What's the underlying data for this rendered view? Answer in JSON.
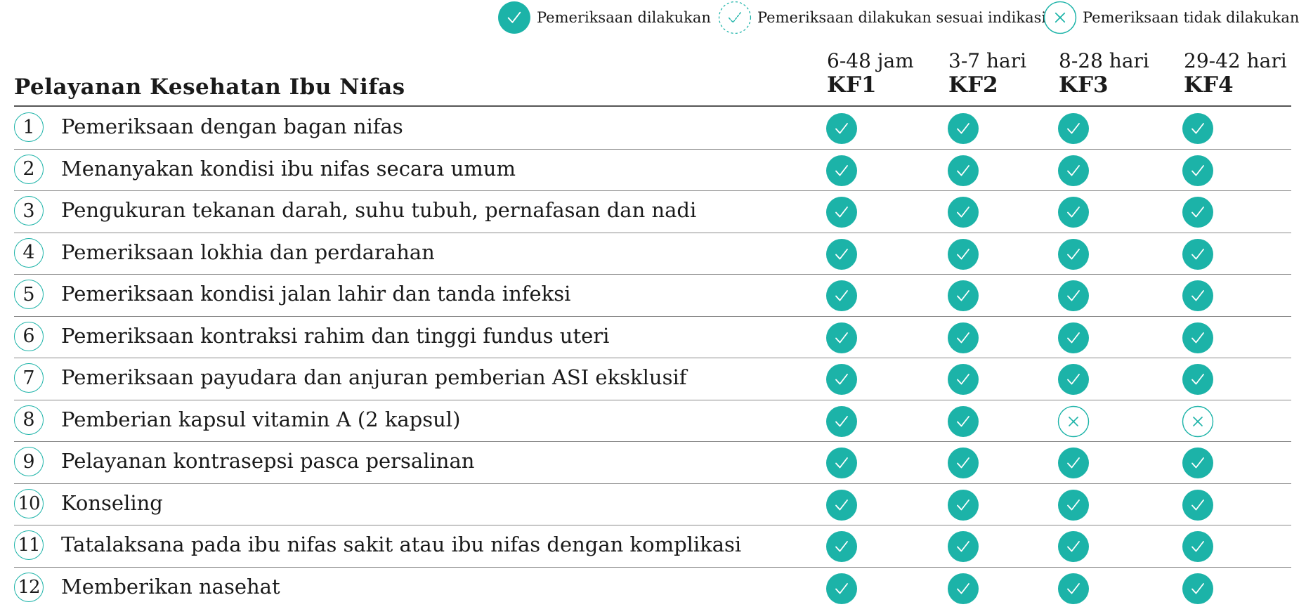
{
  "legend": [
    {
      "icon": "filled-check-icon",
      "label": "Pemeriksaan dilakukan"
    },
    {
      "icon": "dashed-check-icon",
      "label": "Pemeriksaan dilakukan sesuai indikasi"
    },
    {
      "icon": "x-icon",
      "label": "Pemeriksaan tidak dilakukan"
    }
  ],
  "table": {
    "title": "Pelayanan Kesehatan Ibu Nifas",
    "columns": [
      {
        "range": "6-48 jam",
        "code": "KF1"
      },
      {
        "range": "3-7 hari",
        "code": "KF2"
      },
      {
        "range": "8-28 hari",
        "code": "KF3"
      },
      {
        "range": "29-42 hari",
        "code": "KF4"
      }
    ],
    "rows": [
      {
        "num": "1",
        "label": "Pemeriksaan dengan bagan nifas",
        "status": [
          "done",
          "done",
          "done",
          "done"
        ]
      },
      {
        "num": "2",
        "label": "Menanyakan kondisi ibu nifas secara umum",
        "status": [
          "done",
          "done",
          "done",
          "done"
        ]
      },
      {
        "num": "3",
        "label": "Pengukuran tekanan darah, suhu tubuh, pernafasan dan nadi",
        "status": [
          "done",
          "done",
          "done",
          "done"
        ]
      },
      {
        "num": "4",
        "label": "Pemeriksaan lokhia dan perdarahan",
        "status": [
          "done",
          "done",
          "done",
          "done"
        ]
      },
      {
        "num": "5",
        "label": "Pemeriksaan kondisi jalan lahir dan tanda infeksi",
        "status": [
          "done",
          "done",
          "done",
          "done"
        ]
      },
      {
        "num": "6",
        "label": "Pemeriksaan kontraksi rahim dan tinggi fundus uteri",
        "status": [
          "done",
          "done",
          "done",
          "done"
        ]
      },
      {
        "num": "7",
        "label": "Pemeriksaan payudara dan anjuran pemberian ASI eksklusif",
        "status": [
          "done",
          "done",
          "done",
          "done"
        ]
      },
      {
        "num": "8",
        "label": "Pemberian kapsul vitamin A (2 kapsul)",
        "status": [
          "done",
          "done",
          "not_done",
          "not_done"
        ]
      },
      {
        "num": "9",
        "label": "Pelayanan kontrasepsi pasca persalinan",
        "status": [
          "done",
          "done",
          "done",
          "done"
        ]
      },
      {
        "num": "10",
        "label": "Konseling",
        "status": [
          "done",
          "done",
          "done",
          "done"
        ]
      },
      {
        "num": "11",
        "label": "Tatalaksana pada ibu nifas sakit atau ibu nifas dengan komplikasi",
        "status": [
          "done",
          "done",
          "done",
          "done"
        ]
      },
      {
        "num": "12",
        "label": "Memberikan nasehat",
        "status": [
          "done",
          "done",
          "done",
          "done"
        ]
      }
    ]
  },
  "colors": {
    "accent": "#1cb3a8",
    "text": "#1a1a1a",
    "rule": "#8a8a8a"
  }
}
